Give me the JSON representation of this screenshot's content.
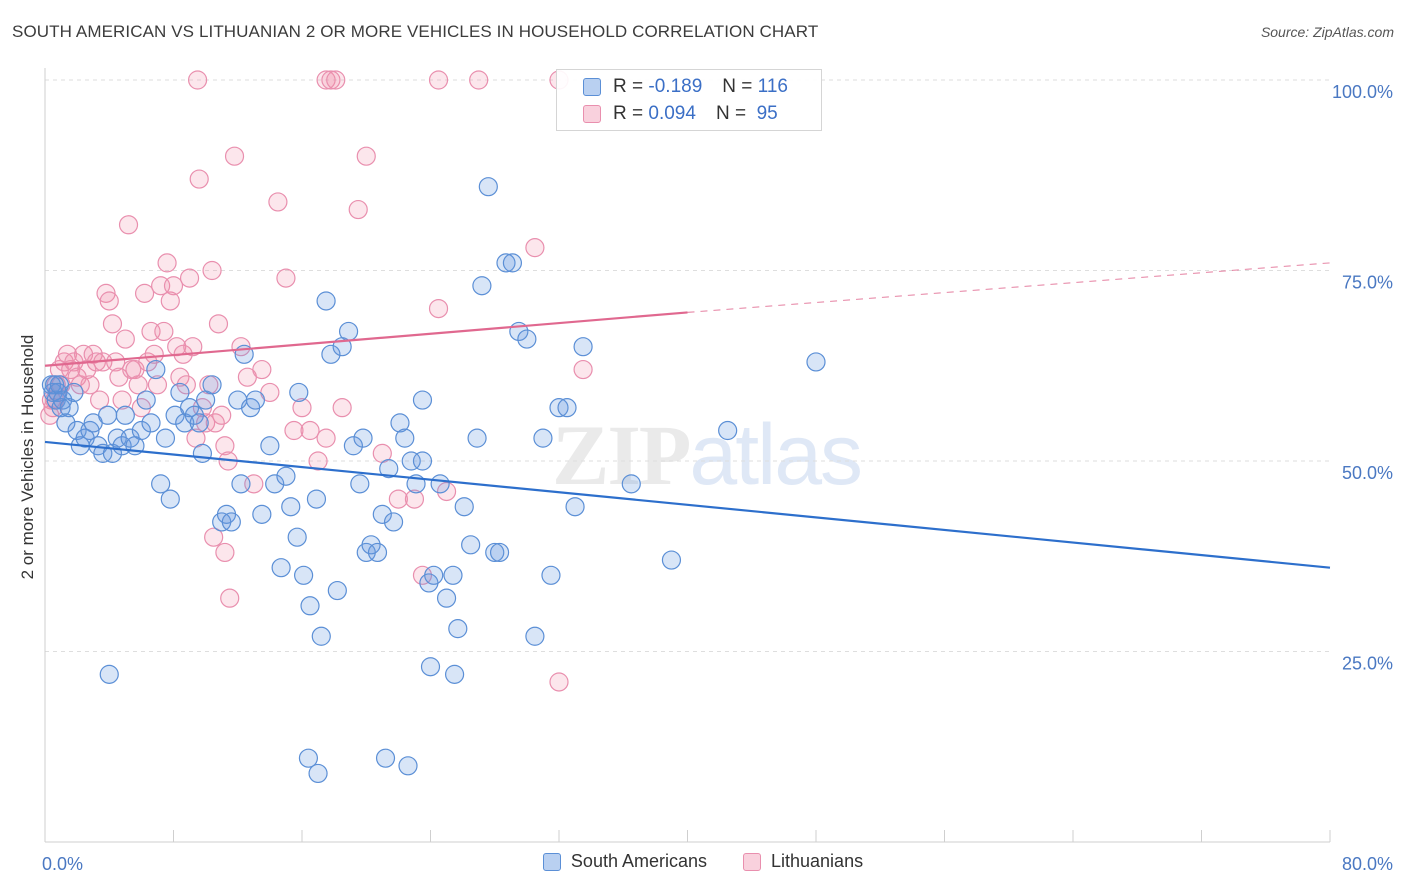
{
  "title": "SOUTH AMERICAN VS LITHUANIAN 2 OR MORE VEHICLES IN HOUSEHOLD CORRELATION CHART",
  "source": "Source: ZipAtlas.com",
  "watermark": {
    "zip": "ZIP",
    "atlas": "atlas"
  },
  "legend": {
    "r_label": "R =",
    "n_label": "N =",
    "rows": [
      {
        "r": "-0.189",
        "n": "116"
      },
      {
        "r": "0.094",
        "n": "95"
      }
    ]
  },
  "colors": {
    "south_american_fill": "rgba(100,150,225,0.25)",
    "south_american_stroke": "#5b8fd6",
    "south_american_line": "#2d6fcc",
    "lithuanian_fill": "rgba(240,140,170,0.22)",
    "lithuanian_stroke": "#e98fae",
    "lithuanian_line": "#e0688f"
  },
  "chart_data": {
    "type": "scatter",
    "title": "SOUTH AMERICAN VS LITHUANIAN 2 OR MORE VEHICLES IN HOUSEHOLD CORRELATION CHART",
    "xlabel": "",
    "ylabel": "2 or more Vehicles in Household",
    "xlim": [
      0,
      80
    ],
    "ylim": [
      0,
      105
    ],
    "x_tick_labels": [
      "0.0%",
      "80.0%"
    ],
    "y_ticks": [
      {
        "value": 25,
        "label": "25.0%"
      },
      {
        "value": 50,
        "label": "50.0%"
      },
      {
        "value": 75,
        "label": "75.0%"
      },
      {
        "value": 100,
        "label": "100.0%"
      }
    ],
    "grid": true,
    "legend_position": "bottom-center",
    "series": [
      {
        "name": "South Americans",
        "r": -0.189,
        "n": 116,
        "trend": {
          "x0": 0,
          "y0": 52.5,
          "x1": 80,
          "y1": 36.0
        },
        "points": [
          [
            0.4,
            60
          ],
          [
            0.5,
            59
          ],
          [
            0.6,
            60
          ],
          [
            0.7,
            58
          ],
          [
            0.8,
            59
          ],
          [
            0.9,
            60
          ],
          [
            1.0,
            57
          ],
          [
            1.1,
            58
          ],
          [
            1.3,
            55
          ],
          [
            1.5,
            57
          ],
          [
            1.8,
            59
          ],
          [
            2.0,
            54
          ],
          [
            2.2,
            52
          ],
          [
            2.5,
            53
          ],
          [
            2.8,
            54
          ],
          [
            3.0,
            55
          ],
          [
            3.3,
            52
          ],
          [
            3.6,
            51
          ],
          [
            3.9,
            56
          ],
          [
            4.2,
            51
          ],
          [
            4.5,
            53
          ],
          [
            4.8,
            52
          ],
          [
            5.0,
            56
          ],
          [
            5.3,
            53
          ],
          [
            5.6,
            52
          ],
          [
            6.0,
            54
          ],
          [
            6.3,
            58
          ],
          [
            6.6,
            55
          ],
          [
            6.9,
            62
          ],
          [
            7.2,
            47
          ],
          [
            7.5,
            53
          ],
          [
            7.8,
            45
          ],
          [
            8.1,
            56
          ],
          [
            8.4,
            59
          ],
          [
            8.7,
            55
          ],
          [
            9.0,
            57
          ],
          [
            9.3,
            56
          ],
          [
            9.6,
            55
          ],
          [
            10.0,
            58
          ],
          [
            10.4,
            60
          ],
          [
            11.0,
            42
          ],
          [
            11.3,
            43
          ],
          [
            11.6,
            42
          ],
          [
            12.0,
            58
          ],
          [
            12.4,
            64
          ],
          [
            12.8,
            57
          ],
          [
            13.1,
            58
          ],
          [
            13.5,
            43
          ],
          [
            14.0,
            52
          ],
          [
            14.3,
            47
          ],
          [
            14.7,
            36
          ],
          [
            15.0,
            48
          ],
          [
            15.3,
            44
          ],
          [
            15.7,
            40
          ],
          [
            16.1,
            35
          ],
          [
            16.5,
            31
          ],
          [
            16.9,
            45
          ],
          [
            17.2,
            27
          ],
          [
            17.5,
            71
          ],
          [
            17.8,
            64
          ],
          [
            18.2,
            33
          ],
          [
            18.5,
            65
          ],
          [
            18.9,
            67
          ],
          [
            19.2,
            52
          ],
          [
            19.6,
            47
          ],
          [
            20.0,
            38
          ],
          [
            20.3,
            39
          ],
          [
            20.7,
            38
          ],
          [
            21.0,
            43
          ],
          [
            21.4,
            49
          ],
          [
            21.7,
            42
          ],
          [
            22.1,
            55
          ],
          [
            22.4,
            53
          ],
          [
            22.8,
            50
          ],
          [
            23.1,
            47
          ],
          [
            23.5,
            50
          ],
          [
            23.9,
            34
          ],
          [
            24.2,
            35
          ],
          [
            24.6,
            47
          ],
          [
            25.0,
            32
          ],
          [
            25.4,
            35
          ],
          [
            25.7,
            28
          ],
          [
            26.1,
            44
          ],
          [
            26.5,
            39
          ],
          [
            26.9,
            53
          ],
          [
            27.2,
            73
          ],
          [
            27.6,
            86
          ],
          [
            28.0,
            38
          ],
          [
            28.3,
            38
          ],
          [
            28.7,
            76
          ],
          [
            29.1,
            76
          ],
          [
            29.5,
            67
          ],
          [
            30.0,
            66
          ],
          [
            30.5,
            27
          ],
          [
            31.0,
            53
          ],
          [
            31.5,
            35
          ],
          [
            32.0,
            57
          ],
          [
            32.5,
            57
          ],
          [
            33.0,
            44
          ],
          [
            33.5,
            65
          ],
          [
            36.5,
            47
          ],
          [
            39.0,
            37
          ],
          [
            42.5,
            54
          ],
          [
            48.0,
            63
          ],
          [
            16.4,
            11
          ],
          [
            17.0,
            9
          ],
          [
            21.2,
            11
          ],
          [
            22.6,
            10
          ],
          [
            24.0,
            23
          ],
          [
            25.5,
            22
          ],
          [
            23.5,
            58
          ],
          [
            19.8,
            53
          ],
          [
            15.8,
            59
          ],
          [
            12.2,
            47
          ],
          [
            9.8,
            51
          ],
          [
            4.0,
            22
          ]
        ]
      },
      {
        "name": "Lithuanians",
        "r": 0.094,
        "n": 95,
        "trend": {
          "x0": 0,
          "y0": 62.5,
          "x1": 40,
          "y1": 69.5,
          "dashed_to_x": 80,
          "dashed_to_y": 76.0
        },
        "points": [
          [
            0.3,
            56
          ],
          [
            0.4,
            58
          ],
          [
            0.5,
            57
          ],
          [
            0.6,
            58
          ],
          [
            0.7,
            60
          ],
          [
            0.8,
            59
          ],
          [
            0.9,
            62
          ],
          [
            1.0,
            60
          ],
          [
            1.2,
            63
          ],
          [
            1.4,
            64
          ],
          [
            1.6,
            62
          ],
          [
            1.8,
            63
          ],
          [
            2.0,
            61
          ],
          [
            2.2,
            60
          ],
          [
            2.4,
            64
          ],
          [
            2.6,
            62
          ],
          [
            2.8,
            60
          ],
          [
            3.0,
            64
          ],
          [
            3.2,
            63
          ],
          [
            3.4,
            58
          ],
          [
            3.6,
            63
          ],
          [
            3.8,
            72
          ],
          [
            4.0,
            71
          ],
          [
            4.2,
            68
          ],
          [
            4.4,
            63
          ],
          [
            4.6,
            61
          ],
          [
            4.8,
            58
          ],
          [
            5.0,
            66
          ],
          [
            5.2,
            81
          ],
          [
            5.4,
            62
          ],
          [
            5.6,
            62
          ],
          [
            5.8,
            60
          ],
          [
            6.0,
            57
          ],
          [
            6.2,
            72
          ],
          [
            6.4,
            63
          ],
          [
            6.6,
            67
          ],
          [
            6.8,
            64
          ],
          [
            7.0,
            60
          ],
          [
            7.2,
            73
          ],
          [
            7.4,
            67
          ],
          [
            7.6,
            76
          ],
          [
            7.8,
            71
          ],
          [
            8.0,
            73
          ],
          [
            8.2,
            65
          ],
          [
            8.4,
            61
          ],
          [
            8.6,
            64
          ],
          [
            8.8,
            60
          ],
          [
            9.0,
            74
          ],
          [
            9.2,
            65
          ],
          [
            9.4,
            53
          ],
          [
            9.6,
            87
          ],
          [
            9.8,
            57
          ],
          [
            10.0,
            55
          ],
          [
            10.2,
            60
          ],
          [
            10.4,
            75
          ],
          [
            10.6,
            55
          ],
          [
            10.8,
            68
          ],
          [
            11.0,
            56
          ],
          [
            11.2,
            52
          ],
          [
            11.4,
            50
          ],
          [
            11.8,
            90
          ],
          [
            12.2,
            65
          ],
          [
            12.6,
            61
          ],
          [
            13.0,
            47
          ],
          [
            13.5,
            62
          ],
          [
            14.0,
            59
          ],
          [
            14.5,
            84
          ],
          [
            15.0,
            74
          ],
          [
            15.5,
            54
          ],
          [
            16.0,
            57
          ],
          [
            16.5,
            54
          ],
          [
            17.0,
            50
          ],
          [
            17.5,
            53
          ],
          [
            18.5,
            57
          ],
          [
            19.5,
            83
          ],
          [
            20.0,
            90
          ],
          [
            21.0,
            51
          ],
          [
            22.0,
            45
          ],
          [
            23.0,
            45
          ],
          [
            23.5,
            35
          ],
          [
            24.5,
            70
          ],
          [
            25.0,
            46
          ],
          [
            30.5,
            78
          ],
          [
            32.0,
            21
          ],
          [
            33.5,
            62
          ],
          [
            9.5,
            100
          ],
          [
            17.5,
            100
          ],
          [
            17.8,
            100
          ],
          [
            18.1,
            100
          ],
          [
            24.5,
            100
          ],
          [
            27.0,
            100
          ],
          [
            32.0,
            100
          ],
          [
            10.5,
            40
          ],
          [
            11.2,
            38
          ],
          [
            11.5,
            32
          ]
        ]
      }
    ]
  }
}
